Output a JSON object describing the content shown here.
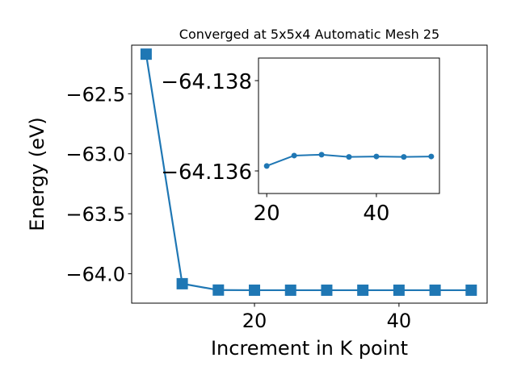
{
  "chart_data": [
    {
      "type": "line",
      "title": "Converged at 5x5x4 Automatic Mesh 25",
      "xlabel": "Increment in K point",
      "ylabel": "Energy (eV)",
      "x": [
        5,
        10,
        15,
        20,
        25,
        30,
        35,
        40,
        45,
        50
      ],
      "series": [
        {
          "values": [
            -62.17,
            -64.083,
            -64.136,
            -64.137,
            -64.137,
            -64.137,
            -64.137,
            -64.137,
            -64.137,
            -64.137
          ],
          "color": "#1f77b4",
          "marker": "square"
        }
      ],
      "xlim": [
        3.0,
        52.2
      ],
      "ylim": [
        -64.245,
        -62.095
      ],
      "xticks": [
        20,
        40
      ],
      "xtick_labels": [
        "20",
        "40"
      ],
      "yticks": [
        -64.0,
        -63.5,
        -63.0,
        -62.5
      ],
      "ytick_labels": [
        "−64.0",
        "−63.5",
        "−63.0",
        "−62.5"
      ],
      "grid": false
    },
    {
      "type": "line",
      "title": "",
      "x": [
        20,
        25,
        30,
        35,
        40,
        45,
        50
      ],
      "series": [
        {
          "values": [
            -64.13611,
            -64.13634,
            -64.13636,
            -64.13631,
            -64.13632,
            -64.13631,
            -64.13632
          ],
          "color": "#1f77b4",
          "marker": "circle"
        }
      ],
      "xlim": [
        18.5,
        51.5
      ],
      "ylim": [
        -64.1355,
        -64.1385
      ],
      "xticks": [
        20,
        40
      ],
      "xtick_labels": [
        "20",
        "40"
      ],
      "yticks": [
        -64.138,
        -64.136
      ],
      "ytick_labels": [
        "−64.138",
        "−64.136"
      ],
      "grid": false
    }
  ]
}
